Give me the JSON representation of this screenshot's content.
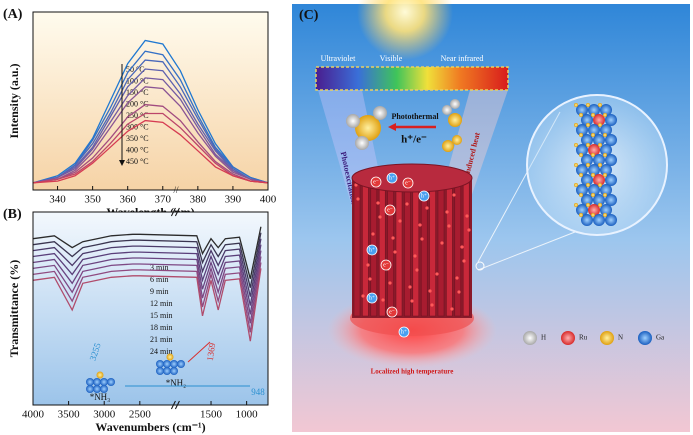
{
  "chart_data": [
    {
      "type": "line",
      "label": "(A)",
      "xlabel": "Wavelength (nm)",
      "ylabel": "Intensity (a.u.)",
      "x": [
        333,
        340,
        345,
        350,
        355,
        360,
        365,
        370,
        375,
        380,
        385,
        390,
        395,
        400
      ],
      "xlim": [
        333,
        400
      ],
      "xticks": [
        340,
        350,
        360,
        370,
        380,
        390,
        400
      ],
      "ylim": [
        0,
        1
      ],
      "series": [
        {
          "name": "50 °C",
          "color": "#1f78d1",
          "values": [
            0.04,
            0.08,
            0.15,
            0.29,
            0.5,
            0.71,
            0.84,
            0.82,
            0.67,
            0.45,
            0.26,
            0.13,
            0.07,
            0.04
          ]
        },
        {
          "name": "100 °C",
          "color": "#3470c6",
          "values": [
            0.04,
            0.07,
            0.14,
            0.28,
            0.46,
            0.66,
            0.78,
            0.76,
            0.62,
            0.42,
            0.24,
            0.13,
            0.07,
            0.04
          ]
        },
        {
          "name": "150 °C",
          "color": "#4a68ba",
          "values": [
            0.04,
            0.07,
            0.14,
            0.26,
            0.43,
            0.62,
            0.73,
            0.72,
            0.58,
            0.4,
            0.23,
            0.12,
            0.06,
            0.04
          ]
        },
        {
          "name": "200 °C",
          "color": "#5f61ae",
          "values": [
            0.04,
            0.07,
            0.13,
            0.24,
            0.41,
            0.58,
            0.68,
            0.67,
            0.54,
            0.37,
            0.22,
            0.11,
            0.06,
            0.04
          ]
        },
        {
          "name": "250 °C",
          "color": "#745aa2",
          "values": [
            0.04,
            0.07,
            0.12,
            0.23,
            0.38,
            0.53,
            0.63,
            0.62,
            0.51,
            0.35,
            0.2,
            0.11,
            0.06,
            0.04
          ]
        },
        {
          "name": "300 °C",
          "color": "#8a5494",
          "values": [
            0.04,
            0.06,
            0.11,
            0.21,
            0.35,
            0.49,
            0.58,
            0.57,
            0.47,
            0.32,
            0.19,
            0.1,
            0.06,
            0.04
          ]
        },
        {
          "name": "350 °C",
          "color": "#a24c80",
          "values": [
            0.04,
            0.06,
            0.1,
            0.18,
            0.29,
            0.41,
            0.48,
            0.47,
            0.39,
            0.27,
            0.16,
            0.09,
            0.05,
            0.04
          ]
        },
        {
          "name": "400 °C",
          "color": "#bc456a",
          "values": [
            0.04,
            0.06,
            0.09,
            0.16,
            0.26,
            0.37,
            0.43,
            0.43,
            0.35,
            0.25,
            0.15,
            0.08,
            0.05,
            0.04
          ]
        },
        {
          "name": "450 °C",
          "color": "#d63c52",
          "values": [
            0.04,
            0.05,
            0.08,
            0.15,
            0.24,
            0.33,
            0.39,
            0.38,
            0.31,
            0.22,
            0.13,
            0.08,
            0.05,
            0.04
          ]
        }
      ]
    },
    {
      "type": "line",
      "label": "(B)",
      "xlabel": "Wavenumbers (cm⁻¹)",
      "ylabel": "Transmittance (%)",
      "x": [
        4000,
        3700,
        3450,
        3300,
        3100,
        2900,
        2600,
        2500,
        1700,
        1620,
        1500,
        1400,
        1300,
        1100,
        948,
        800
      ],
      "xlim": [
        4000,
        700
      ],
      "xticks": [
        4000,
        3500,
        3000,
        2500,
        1500,
        1000
      ],
      "ylim": [
        -0.4,
        0.9
      ],
      "annotations": [
        "3255",
        "1369",
        "948",
        "*NH₃",
        "*NH₂"
      ],
      "series": [
        {
          "name": "3 min",
          "color": "#2b2b2b",
          "values": [
            0.72,
            0.74,
            0.66,
            0.7,
            0.72,
            0.74,
            0.75,
            0.75,
            0.74,
            0.62,
            0.72,
            0.66,
            0.72,
            0.73,
            0.45,
            0.8
          ]
        },
        {
          "name": "6 min",
          "color": "#3a3550",
          "values": [
            0.68,
            0.7,
            0.6,
            0.66,
            0.68,
            0.7,
            0.71,
            0.71,
            0.7,
            0.56,
            0.68,
            0.6,
            0.68,
            0.69,
            0.39,
            0.76
          ]
        },
        {
          "name": "9 min",
          "color": "#4b3a6a",
          "values": [
            0.64,
            0.66,
            0.54,
            0.62,
            0.64,
            0.66,
            0.67,
            0.67,
            0.66,
            0.5,
            0.64,
            0.54,
            0.64,
            0.65,
            0.33,
            0.72
          ]
        },
        {
          "name": "12 min",
          "color": "#5a3f7a",
          "values": [
            0.6,
            0.62,
            0.48,
            0.58,
            0.6,
            0.62,
            0.63,
            0.63,
            0.62,
            0.44,
            0.6,
            0.48,
            0.6,
            0.61,
            0.27,
            0.68
          ]
        },
        {
          "name": "15 min",
          "color": "#6b4480",
          "values": [
            0.56,
            0.58,
            0.42,
            0.54,
            0.56,
            0.58,
            0.59,
            0.59,
            0.58,
            0.38,
            0.56,
            0.42,
            0.56,
            0.57,
            0.21,
            0.64
          ]
        },
        {
          "name": "18 min",
          "color": "#7d4884",
          "values": [
            0.52,
            0.54,
            0.36,
            0.5,
            0.52,
            0.54,
            0.55,
            0.55,
            0.54,
            0.32,
            0.52,
            0.36,
            0.52,
            0.53,
            0.15,
            0.6
          ]
        },
        {
          "name": "21 min",
          "color": "#8f4a80",
          "values": [
            0.48,
            0.5,
            0.3,
            0.46,
            0.48,
            0.5,
            0.51,
            0.51,
            0.5,
            0.26,
            0.48,
            0.3,
            0.48,
            0.49,
            0.09,
            0.56
          ]
        },
        {
          "name": "24 min",
          "color": "#b04c6c",
          "values": [
            0.44,
            0.46,
            0.24,
            0.42,
            0.44,
            0.46,
            0.47,
            0.47,
            0.46,
            0.2,
            0.44,
            0.24,
            0.44,
            0.45,
            0.03,
            0.52
          ]
        }
      ]
    }
  ],
  "illustration": {
    "label": "(C)",
    "spectrum": [
      "Ultraviolet",
      "Visible",
      "Near infrared"
    ],
    "process": "Photothermal",
    "carriers": "h⁺/e⁻",
    "left_beam": "Photoexcitation",
    "right_beam": "Photo-induced heat",
    "base": "Localized high temperature",
    "electron": "e⁻",
    "hole": "h⁺",
    "legend": [
      "H",
      "Ru",
      "N",
      "Ga"
    ]
  }
}
